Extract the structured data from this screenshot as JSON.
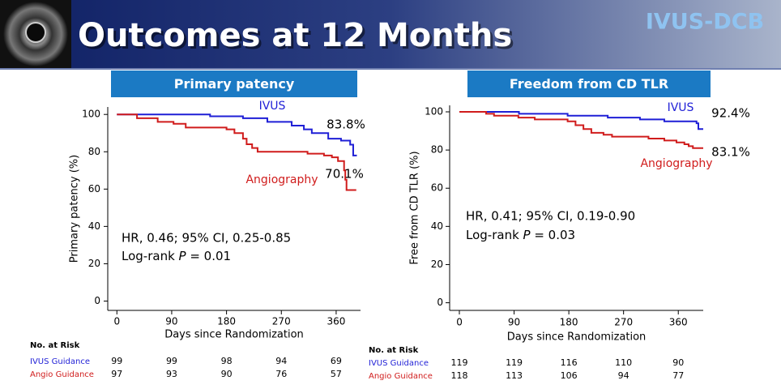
{
  "header": {
    "title": "Outcomes at 12 Months",
    "badge": "IVUS-DCB"
  },
  "chart_data": [
    {
      "type": "line",
      "step": true,
      "title": "Primary patency",
      "y_label": "Primary patency (%)",
      "x_label": "Days since Randomization",
      "xlim": [
        -15,
        400
      ],
      "ylim": [
        -5,
        104
      ],
      "xticks": [
        0,
        90,
        180,
        270,
        360
      ],
      "yticks": [
        0,
        20,
        40,
        60,
        80,
        100
      ],
      "series": [
        {
          "name": "IVUS",
          "color": "#1f1fd6",
          "x": [
            0,
            153,
            207,
            247,
            287,
            307,
            320,
            347,
            368,
            383,
            388,
            394
          ],
          "values": [
            100,
            99,
            98,
            96,
            94,
            92,
            90,
            87,
            86,
            83.8,
            78,
            78
          ]
        },
        {
          "name": "Angiography",
          "color": "#d01c1c",
          "x": [
            0,
            33,
            67,
            93,
            113,
            180,
            193,
            207,
            213,
            222,
            231,
            313,
            340,
            353,
            363,
            373,
            375,
            377,
            393
          ],
          "values": [
            100,
            98,
            96,
            95,
            93,
            92,
            90,
            87,
            84,
            82,
            80,
            79,
            78,
            77,
            75,
            70,
            65,
            59.5,
            59.5
          ]
        }
      ],
      "annotations": [
        "83.8%",
        "70.1%"
      ],
      "stats": [
        "HR, 0.46; 95% CI, 0.25-0.85",
        [
          "Log-rank ",
          "P",
          " = 0.01"
        ]
      ],
      "risk_table": {
        "title": "No. at Risk",
        "rows": [
          {
            "name": "IVUS Guidance",
            "color": "#1f1fd6",
            "values": [
              99,
              99,
              98,
              94,
              69
            ]
          },
          {
            "name": "Angio Guidance",
            "color": "#d01c1c",
            "values": [
              97,
              93,
              90,
              76,
              57
            ]
          }
        ]
      }
    },
    {
      "type": "line",
      "step": true,
      "title": "Freedom from CD TLR",
      "y_label": "Free from CD TLR (%)",
      "x_label": "Days since Randomization",
      "xlim": [
        -16,
        401
      ],
      "ylim": [
        -4,
        103.4
      ],
      "xticks": [
        0,
        90,
        180,
        270,
        360
      ],
      "yticks": [
        0,
        20,
        40,
        60,
        80,
        100
      ],
      "series": [
        {
          "name": "IVUS",
          "color": "#1f1fd6",
          "x": [
            0,
            98,
            178,
            244,
            297,
            337,
            390,
            393,
            401
          ],
          "values": [
            100,
            99,
            98,
            97,
            96,
            95,
            94,
            91,
            91
          ]
        },
        {
          "name": "Angiography",
          "color": "#d01c1c",
          "x": [
            0,
            44,
            57,
            97,
            124,
            178,
            191,
            204,
            217,
            237,
            251,
            311,
            337,
            357,
            370,
            377,
            384,
            401
          ],
          "values": [
            100,
            99,
            98,
            97,
            96,
            95,
            93,
            91,
            89,
            88,
            87,
            86,
            85,
            84,
            83,
            82,
            81,
            81
          ]
        }
      ],
      "annotations": [
        "92.4%",
        "83.1%"
      ],
      "stats": [
        "HR, 0.41; 95% CI, 0.19-0.90",
        [
          "Log-rank ",
          "P",
          " = 0.03"
        ]
      ],
      "risk_table": {
        "title": "No. at Risk",
        "rows": [
          {
            "name": "IVUS Guidance",
            "color": "#1f1fd6",
            "values": [
              119,
              119,
              116,
              110,
              90
            ]
          },
          {
            "name": "Angio Guidance",
            "color": "#d01c1c",
            "values": [
              118,
              113,
              106,
              94,
              77
            ]
          }
        ]
      }
    }
  ]
}
